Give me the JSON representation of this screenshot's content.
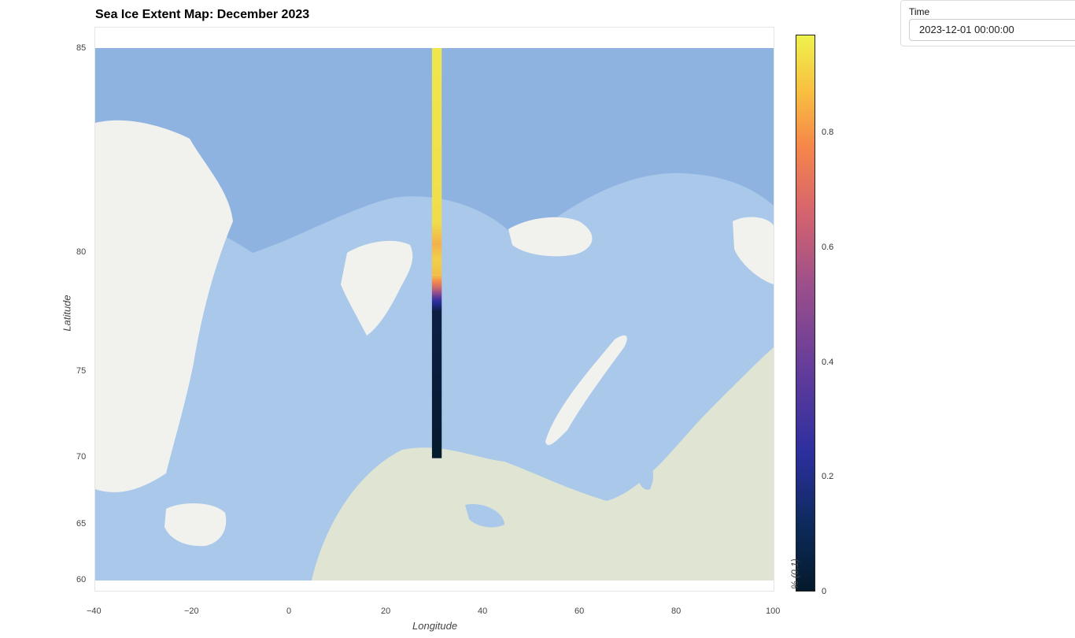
{
  "chart_data": {
    "type": "heatmap",
    "title": "Sea Ice Extent Map: December 2023",
    "xlabel": "Longitude",
    "ylabel": "Latitude",
    "xlim": [
      -40,
      100
    ],
    "ylim": [
      60,
      85
    ],
    "x_ticks": [
      "−40",
      "−20",
      "0",
      "20",
      "40",
      "60",
      "80",
      "100"
    ],
    "y_ticks": [
      "85",
      "80",
      "75",
      "70",
      "65",
      "60"
    ],
    "colorbar": {
      "label": "% (0,1)",
      "range": [
        0,
        1
      ],
      "ticks": [
        "0",
        "0.2",
        "0.4",
        "0.6",
        "0.8"
      ],
      "colormap": [
        "#041a2b",
        "#2d2f9f",
        "#9c4f8b",
        "#f6864a",
        "#eef24c"
      ]
    },
    "strip": {
      "longitude_range": [
        29.5,
        31.5
      ],
      "latitude_range": [
        69.8,
        85
      ],
      "samples": [
        {
          "lat": 85.0,
          "value": 0.97
        },
        {
          "lat": 81.0,
          "value": 0.95
        },
        {
          "lat": 80.3,
          "value": 0.85
        },
        {
          "lat": 79.8,
          "value": 0.92
        },
        {
          "lat": 79.2,
          "value": 0.88
        },
        {
          "lat": 78.7,
          "value": 0.6
        },
        {
          "lat": 78.3,
          "value": 0.3
        },
        {
          "lat": 77.8,
          "value": 0.05
        },
        {
          "lat": 70.0,
          "value": 0.0
        }
      ]
    },
    "colors": {
      "ocean": "#8fb3e0",
      "shelf": "#a9c8ea",
      "land": "#f1f1ee",
      "vegetation": "#dfe5d2"
    }
  },
  "widget": {
    "label": "Time",
    "value": "2023-12-01 00:00:00"
  }
}
